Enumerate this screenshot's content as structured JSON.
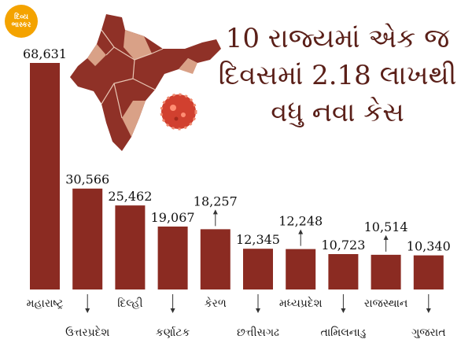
{
  "logo": {
    "line1": "દિવ્ય",
    "line2": "ભાસ્કર"
  },
  "headline": {
    "line1": "10 રાજ્યમાં એક જ",
    "line2": "દિવસમાં 2.18 લાખથી",
    "line3": "વધુ નવા કેસ"
  },
  "colors": {
    "bar": "#8b2b22",
    "map_dark": "#8f3127",
    "map_light": "#d9a187",
    "virus": "#d1402f",
    "text": "#111111",
    "headline": "#5a1f18"
  },
  "chart_data": {
    "type": "bar",
    "categories": [
      "મહારાષ્ટ્ર",
      "ઉત્તરપ્રદેશ",
      "દિલ્હી",
      "કર્ણાટક",
      "કેરળ",
      "છત્તીસગઢ",
      "મધ્યપ્રદેશ",
      "તામિલનાડુ",
      "રાજસ્થાન",
      "ગુજરાત"
    ],
    "values": [
      68631,
      30566,
      25462,
      19067,
      18257,
      12345,
      12248,
      10723,
      10514,
      10340
    ],
    "value_labels": [
      "68,631",
      "30,566",
      "25,462",
      "19,067",
      "18,257",
      "12,345",
      "12,248",
      "10,723",
      "10,514",
      "10,340"
    ],
    "label_row": [
      "top",
      "bottom",
      "top",
      "bottom",
      "top",
      "bottom",
      "top",
      "bottom",
      "top",
      "bottom"
    ],
    "value_label_mode": [
      "direct",
      "direct",
      "direct",
      "direct",
      "arrow",
      "direct",
      "arrow",
      "direct",
      "arrow",
      "direct"
    ],
    "ylim": [
      0,
      70000
    ],
    "grid": false,
    "title": "",
    "xlabel": "",
    "ylabel": ""
  }
}
